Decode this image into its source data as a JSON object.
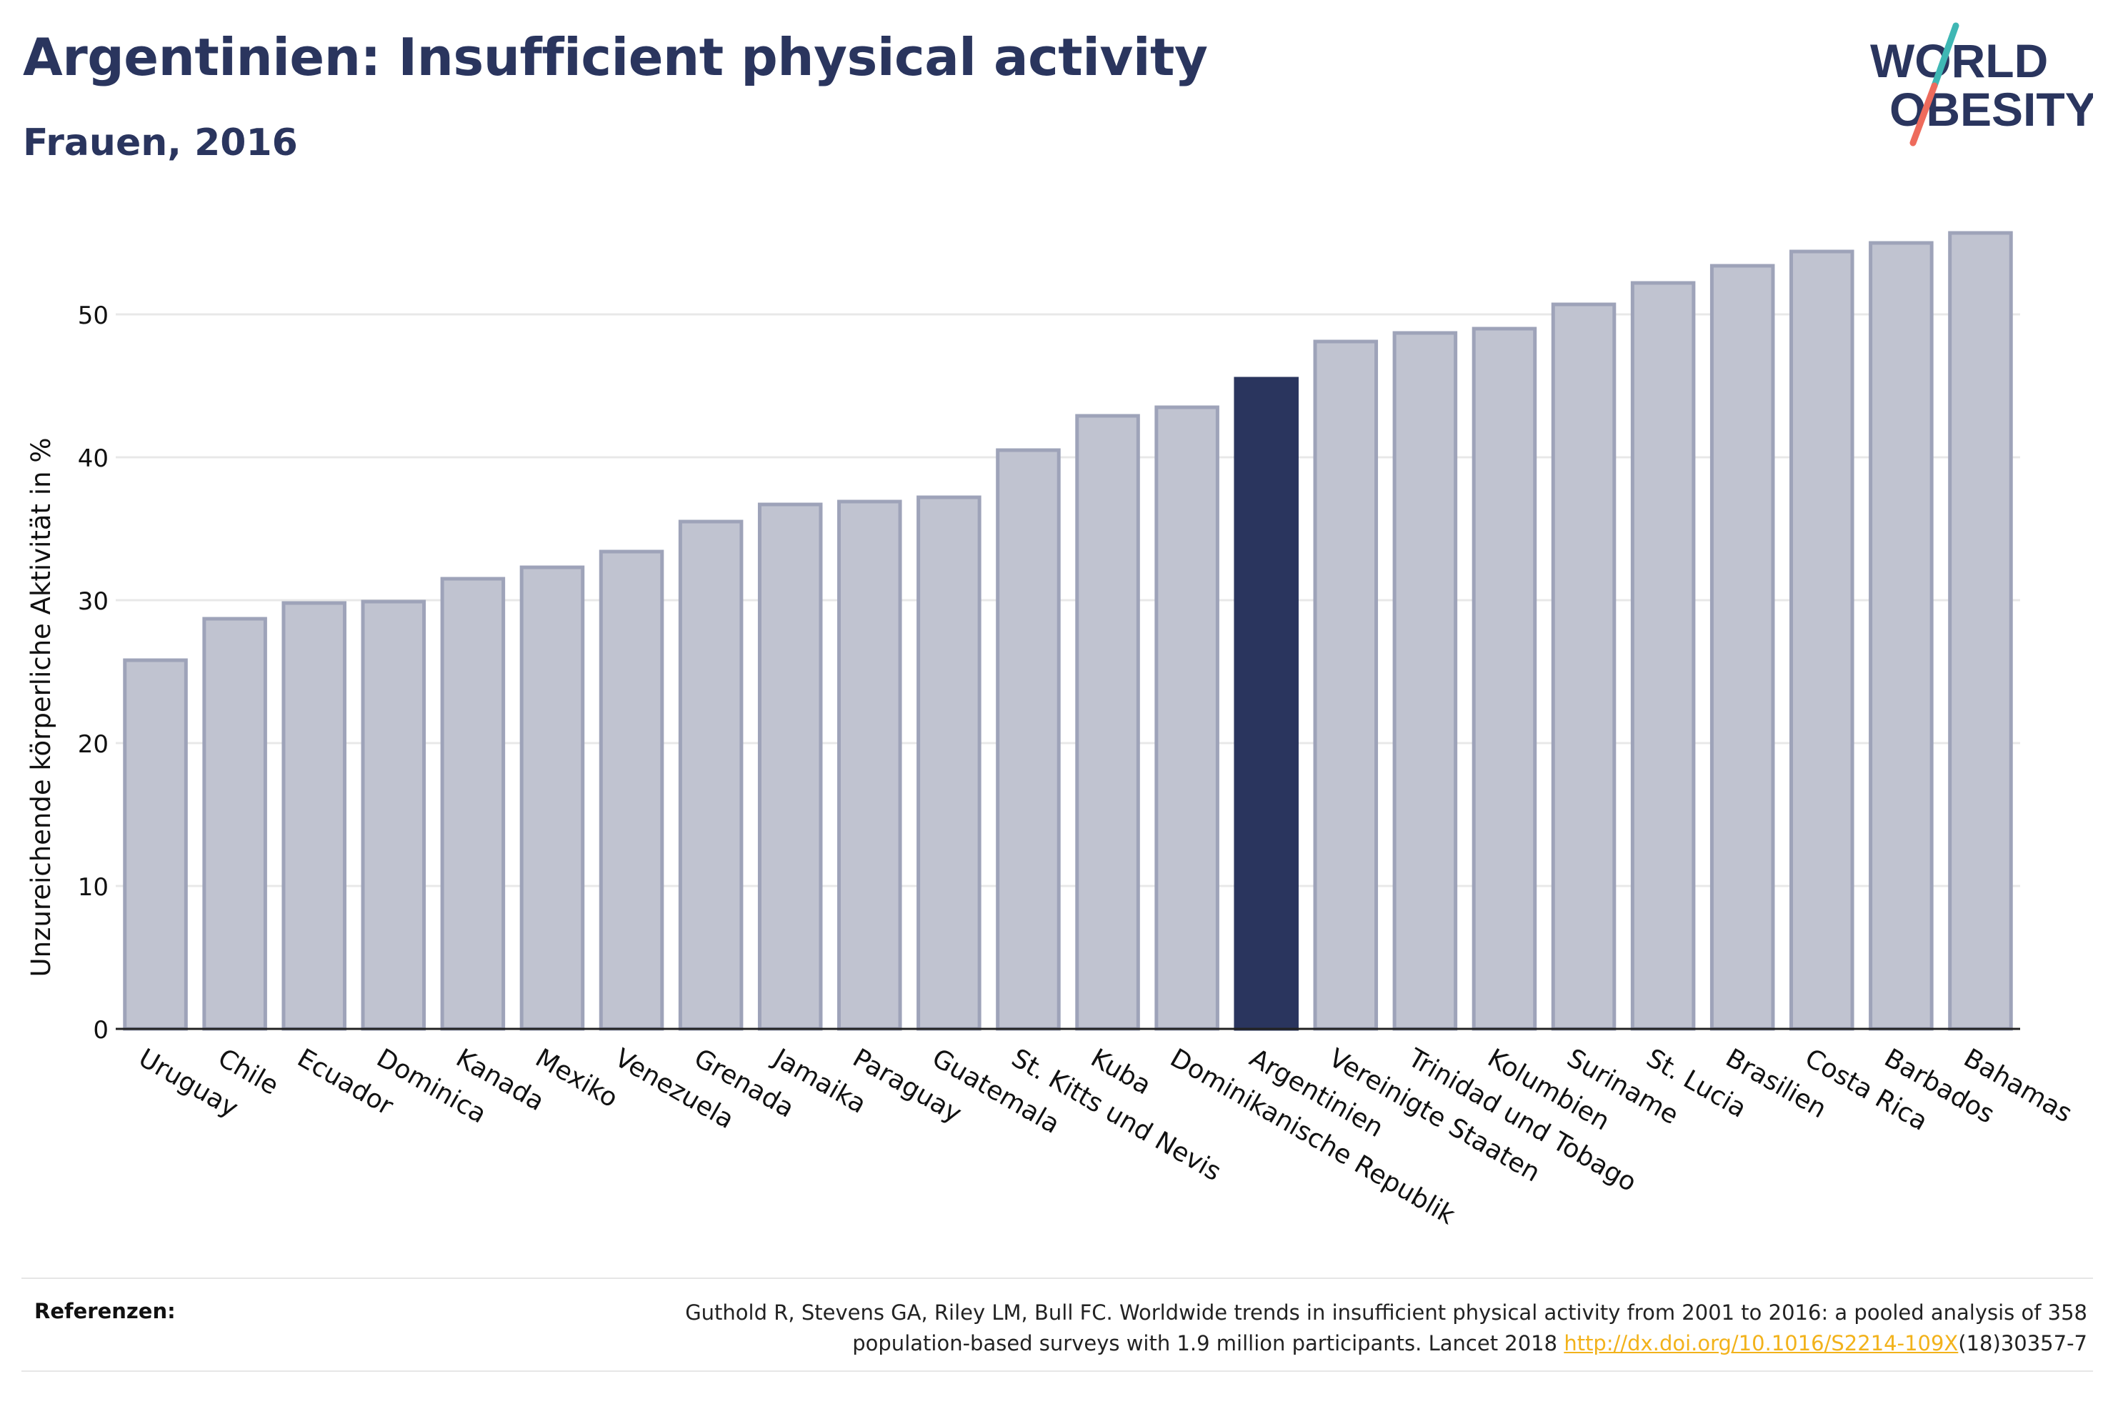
{
  "header": {
    "title": "Argentinien: Insufficient physical activity",
    "subtitle": "Frauen, 2016"
  },
  "logo": {
    "line1": "WORLD",
    "line2": "OBESITY"
  },
  "chart_data": {
    "type": "bar",
    "title": "Argentinien: Insufficient physical activity",
    "subtitle": "Frauen, 2016",
    "ylabel": "Unzureichende körperliche Aktivität in %",
    "xlabel": "",
    "ylim": [
      0,
      57
    ],
    "yticks": [
      0,
      10,
      20,
      30,
      40,
      50
    ],
    "grid": true,
    "highlight": "Argentinien",
    "categories": [
      "Uruguay",
      "Chile",
      "Ecuador",
      "Dominica",
      "Kanada",
      "Mexiko",
      "Venezuela",
      "Grenada",
      "Jamaika",
      "Paraguay",
      "Guatemala",
      "St. Kitts und Nevis",
      "Kuba",
      "Dominikanische Republik",
      "Argentinien",
      "Vereinigte Staaten",
      "Trinidad und Tobago",
      "Kolumbien",
      "Suriname",
      "St. Lucia",
      "Brasilien",
      "Costa Rica",
      "Barbados",
      "Bahamas"
    ],
    "values": [
      25.8,
      28.7,
      29.8,
      29.9,
      31.5,
      32.3,
      33.4,
      35.5,
      36.7,
      36.9,
      37.2,
      40.5,
      42.9,
      43.5,
      45.5,
      48.1,
      48.7,
      49.0,
      50.7,
      52.2,
      53.4,
      54.4,
      55.0,
      55.7
    ],
    "colors": {
      "bar": "#c0c3d0",
      "bar_border": "#9ea3b9",
      "highlight": "#2a355e",
      "grid": "#e8e8e8"
    }
  },
  "references": {
    "label": "Referenzen:",
    "text_line1": "Guthold R, Stevens GA, Riley LM, Bull FC. Worldwide trends in insufficient physical activity from 2001 to 2016: a pooled analysis of 358",
    "text_line2_prefix": "population-based surveys with 1.9 million participants. Lancet 2018 ",
    "link": "http://dx.doi.org/10.1016/S2214-109X",
    "text_line2_suffix": "(18)30357-7"
  }
}
